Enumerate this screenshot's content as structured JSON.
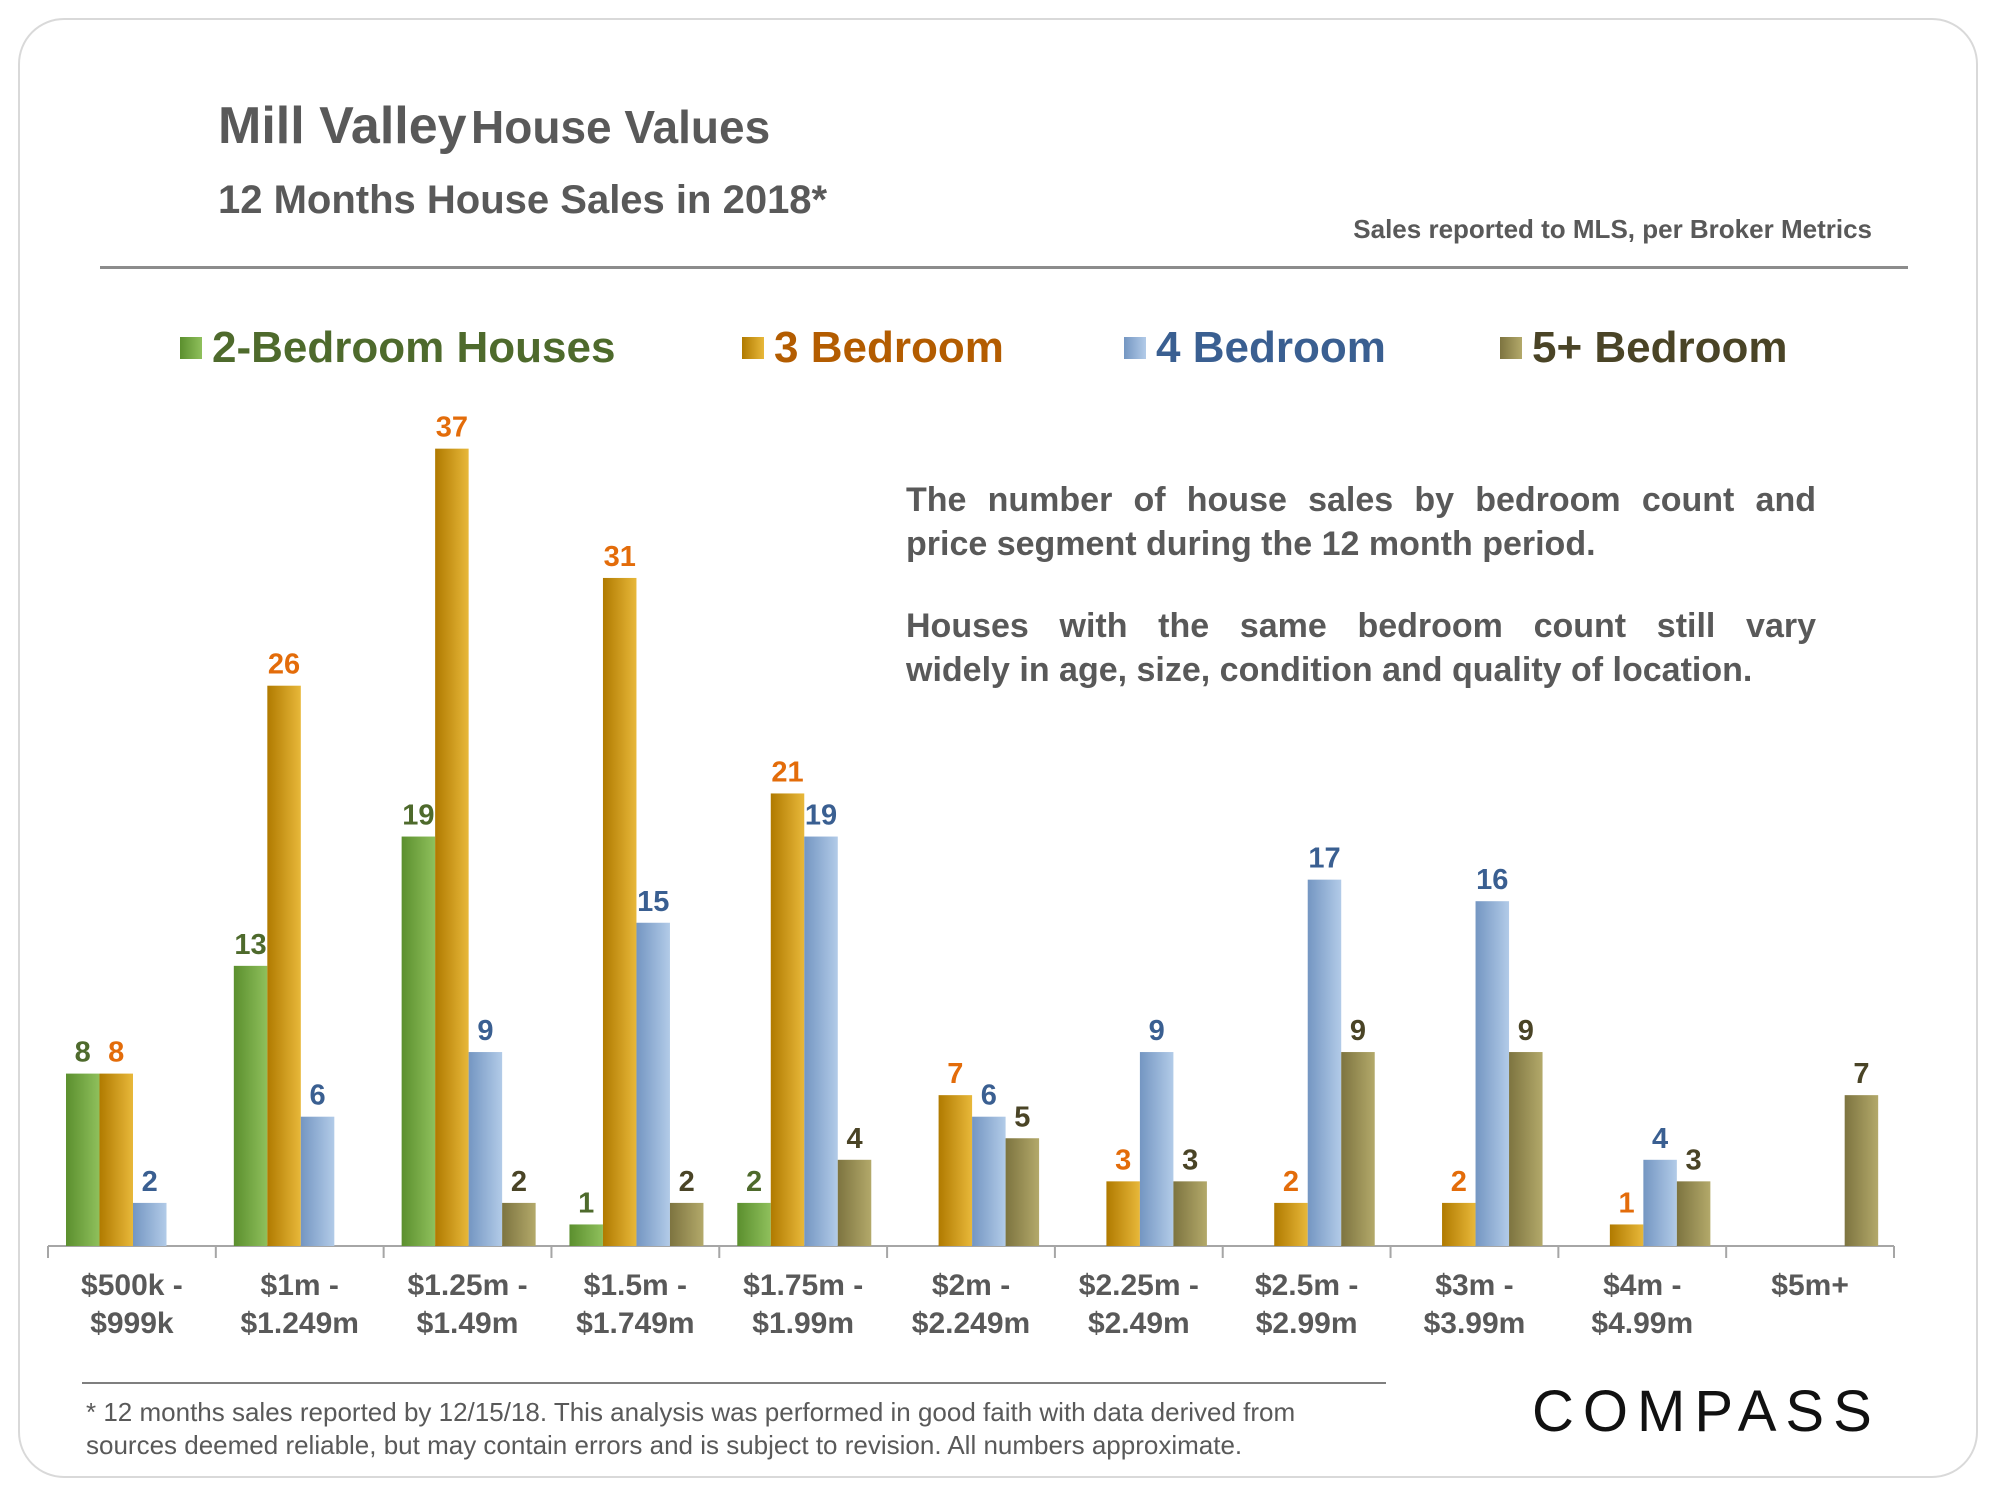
{
  "header": {
    "title_part1": "Mill Valley",
    "title_part2": "House Values",
    "subtitle": "12 Months House Sales in 2018*",
    "source": "Sales reported to MLS, per Broker Metrics"
  },
  "notes": {
    "p1_line1": "The number of house sales by bedroom count and",
    "p1_line2": "price segment during the 12 month period.",
    "p2_line1": "Houses with the same bedroom count still vary",
    "p2_line2": "widely in age, size, condition and quality of location."
  },
  "footnote": {
    "line1": "* 12 months sales reported by 12/15/18. This analysis was performed in good faith with data derived from",
    "line2": "sources deemed reliable, but may contain errors and is subject to revision. All numbers approximate."
  },
  "logo": {
    "text": "COMPASS"
  },
  "chart_data": {
    "type": "bar",
    "title": "Mill Valley House Values",
    "subtitle": "12 Months House Sales in 2018*",
    "xlabel": "",
    "ylabel": "",
    "ylim": [
      0,
      40
    ],
    "grid": false,
    "legend_position": "top",
    "categories": [
      [
        "$500k -",
        "$999k"
      ],
      [
        "$1m -",
        "$1.249m"
      ],
      [
        "$1.25m -",
        "$1.49m"
      ],
      [
        "$1.5m -",
        "$1.749m"
      ],
      [
        "$1.75m -",
        "$1.99m"
      ],
      [
        "$2m -",
        "$2.249m"
      ],
      [
        "$2.25m -",
        "$2.49m"
      ],
      [
        "$2.5m -",
        "$2.99m"
      ],
      [
        "$3m -",
        "$3.99m"
      ],
      [
        "$4m -",
        "$4.99m"
      ],
      [
        "$5m+"
      ]
    ],
    "series": [
      {
        "name": "2-Bedroom Houses",
        "color": "#5b8f2e",
        "light": "#8fc05c",
        "label_color": "#4e6a2c",
        "values": [
          8,
          13,
          19,
          1,
          2,
          null,
          null,
          null,
          null,
          null,
          null
        ]
      },
      {
        "name": "3 Bedroom",
        "color": "#b07a00",
        "light": "#e8b83a",
        "label_color": "#e36c0a",
        "values": [
          8,
          26,
          37,
          31,
          21,
          7,
          3,
          2,
          2,
          1,
          null
        ]
      },
      {
        "name": "4 Bedroom",
        "color": "#7496c2",
        "light": "#b2cbe8",
        "label_color": "#3a5f91",
        "values": [
          2,
          6,
          9,
          15,
          19,
          6,
          9,
          17,
          16,
          4,
          null
        ]
      },
      {
        "name": "5+ Bedroom",
        "color": "#7d7440",
        "light": "#b3a96a",
        "label_color": "#4a4426",
        "values": [
          null,
          null,
          2,
          2,
          4,
          5,
          3,
          9,
          9,
          3,
          7
        ]
      }
    ]
  }
}
